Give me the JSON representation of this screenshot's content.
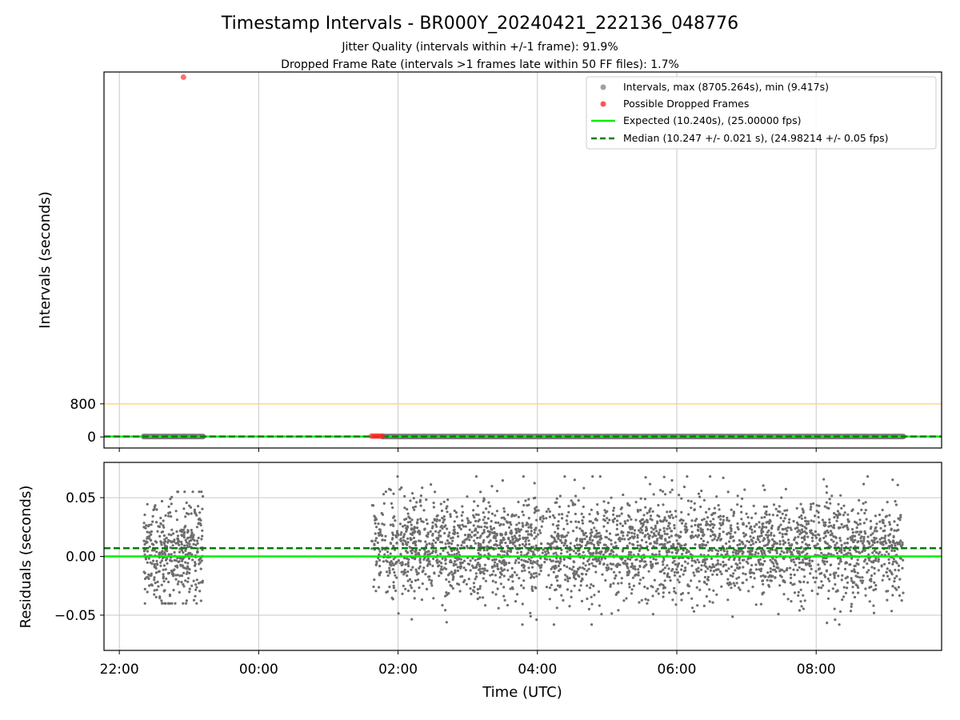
{
  "title": "Timestamp Intervals - BR000Y_20240421_222136_048776",
  "subtitle_1": "Jitter Quality (intervals within +/-1 frame): 91.9%",
  "subtitle_2": "Dropped Frame Rate (intervals >1 frames late within 50 FF files): 1.7%",
  "colors": {
    "intervals": "#808080",
    "dropped": "#ff0000",
    "expected": "#00ee00",
    "median": "#008000",
    "threshold": "#ffd580",
    "grid": "#c8c8c8"
  },
  "chart_data": [
    {
      "type": "scatter",
      "panel": "top",
      "xlabel": "",
      "ylabel": "Intervals (seconds)",
      "x_unit": "hours since 00:00 UTC (continuous, negative = previous day)",
      "xlim": [
        -2.22,
        9.8
      ],
      "ylim": [
        -268,
        8830
      ],
      "yticks": [
        0,
        800
      ],
      "ytick_labels": [
        "0",
        "800"
      ],
      "xgrid_hours": [
        -2,
        0,
        2,
        4,
        6,
        8
      ],
      "threshold_line": {
        "y": 800,
        "color": "#ffd580"
      },
      "legend": {
        "placement": "upper right",
        "entries": [
          {
            "label": "Intervals, max (8705.264s), min (9.417s)",
            "style": "marker",
            "color": "#a0a0a0"
          },
          {
            "label": "Possible Dropped Frames",
            "style": "marker",
            "color": "#ff5555"
          },
          {
            "label": "Expected (10.240s), (25.00000 fps)",
            "style": "line",
            "color": "#00ee00"
          },
          {
            "label": "Median (10.247 +/- 0.021 s), (24.98214 +/- 0.05 fps)",
            "style": "dashed",
            "color": "#008000"
          }
        ]
      },
      "series": [
        {
          "name": "Intervals",
          "segments": [
            {
              "x_range": [
                -1.65,
                -0.8
              ],
              "y": 10.25
            },
            {
              "x_range": [
                1.78,
                9.25
              ],
              "y": 10.25
            }
          ]
        },
        {
          "name": "Possible Dropped Frames",
          "points": [
            {
              "x": -1.08,
              "y": 8705.264
            },
            {
              "x": 1.62,
              "y": 20.5
            },
            {
              "x": 1.65,
              "y": 20.5
            },
            {
              "x": 1.68,
              "y": 20.5
            },
            {
              "x": 1.71,
              "y": 20.5
            },
            {
              "x": 1.74,
              "y": 20.5
            },
            {
              "x": 1.77,
              "y": 20.5
            }
          ]
        },
        {
          "name": "Expected",
          "y": 10.24
        },
        {
          "name": "Median",
          "y": 10.247
        }
      ]
    },
    {
      "type": "scatter",
      "panel": "bottom",
      "xlabel": "Time (UTC)",
      "ylabel": "Residuals (seconds)",
      "x_unit": "hours since 00:00 UTC (continuous, negative = previous day)",
      "xlim": [
        -2.22,
        9.8
      ],
      "ylim": [
        -0.08,
        0.08
      ],
      "yticks": [
        -0.05,
        0.0,
        0.05
      ],
      "ytick_labels": [
        "−0.05",
        "0.00",
        "0.05"
      ],
      "xticks": [
        -2,
        0,
        2,
        4,
        6,
        8
      ],
      "xtick_labels": [
        "22:00",
        "00:00",
        "02:00",
        "04:00",
        "06:00",
        "08:00"
      ],
      "series": [
        {
          "name": "Residuals",
          "segments": [
            {
              "x_range": [
                -1.65,
                -0.8
              ],
              "count": 420,
              "y_mean": 0.005,
              "y_sd": 0.022,
              "y_clip": [
                -0.04,
                0.055
              ]
            },
            {
              "x_range": [
                1.62,
                9.25
              ],
              "count": 3200,
              "y_mean": 0.007,
              "y_sd": 0.021,
              "y_clip": [
                -0.058,
                0.068
              ]
            }
          ]
        },
        {
          "name": "Expected",
          "y": 0.0
        },
        {
          "name": "Median",
          "y": 0.007
        }
      ]
    }
  ]
}
